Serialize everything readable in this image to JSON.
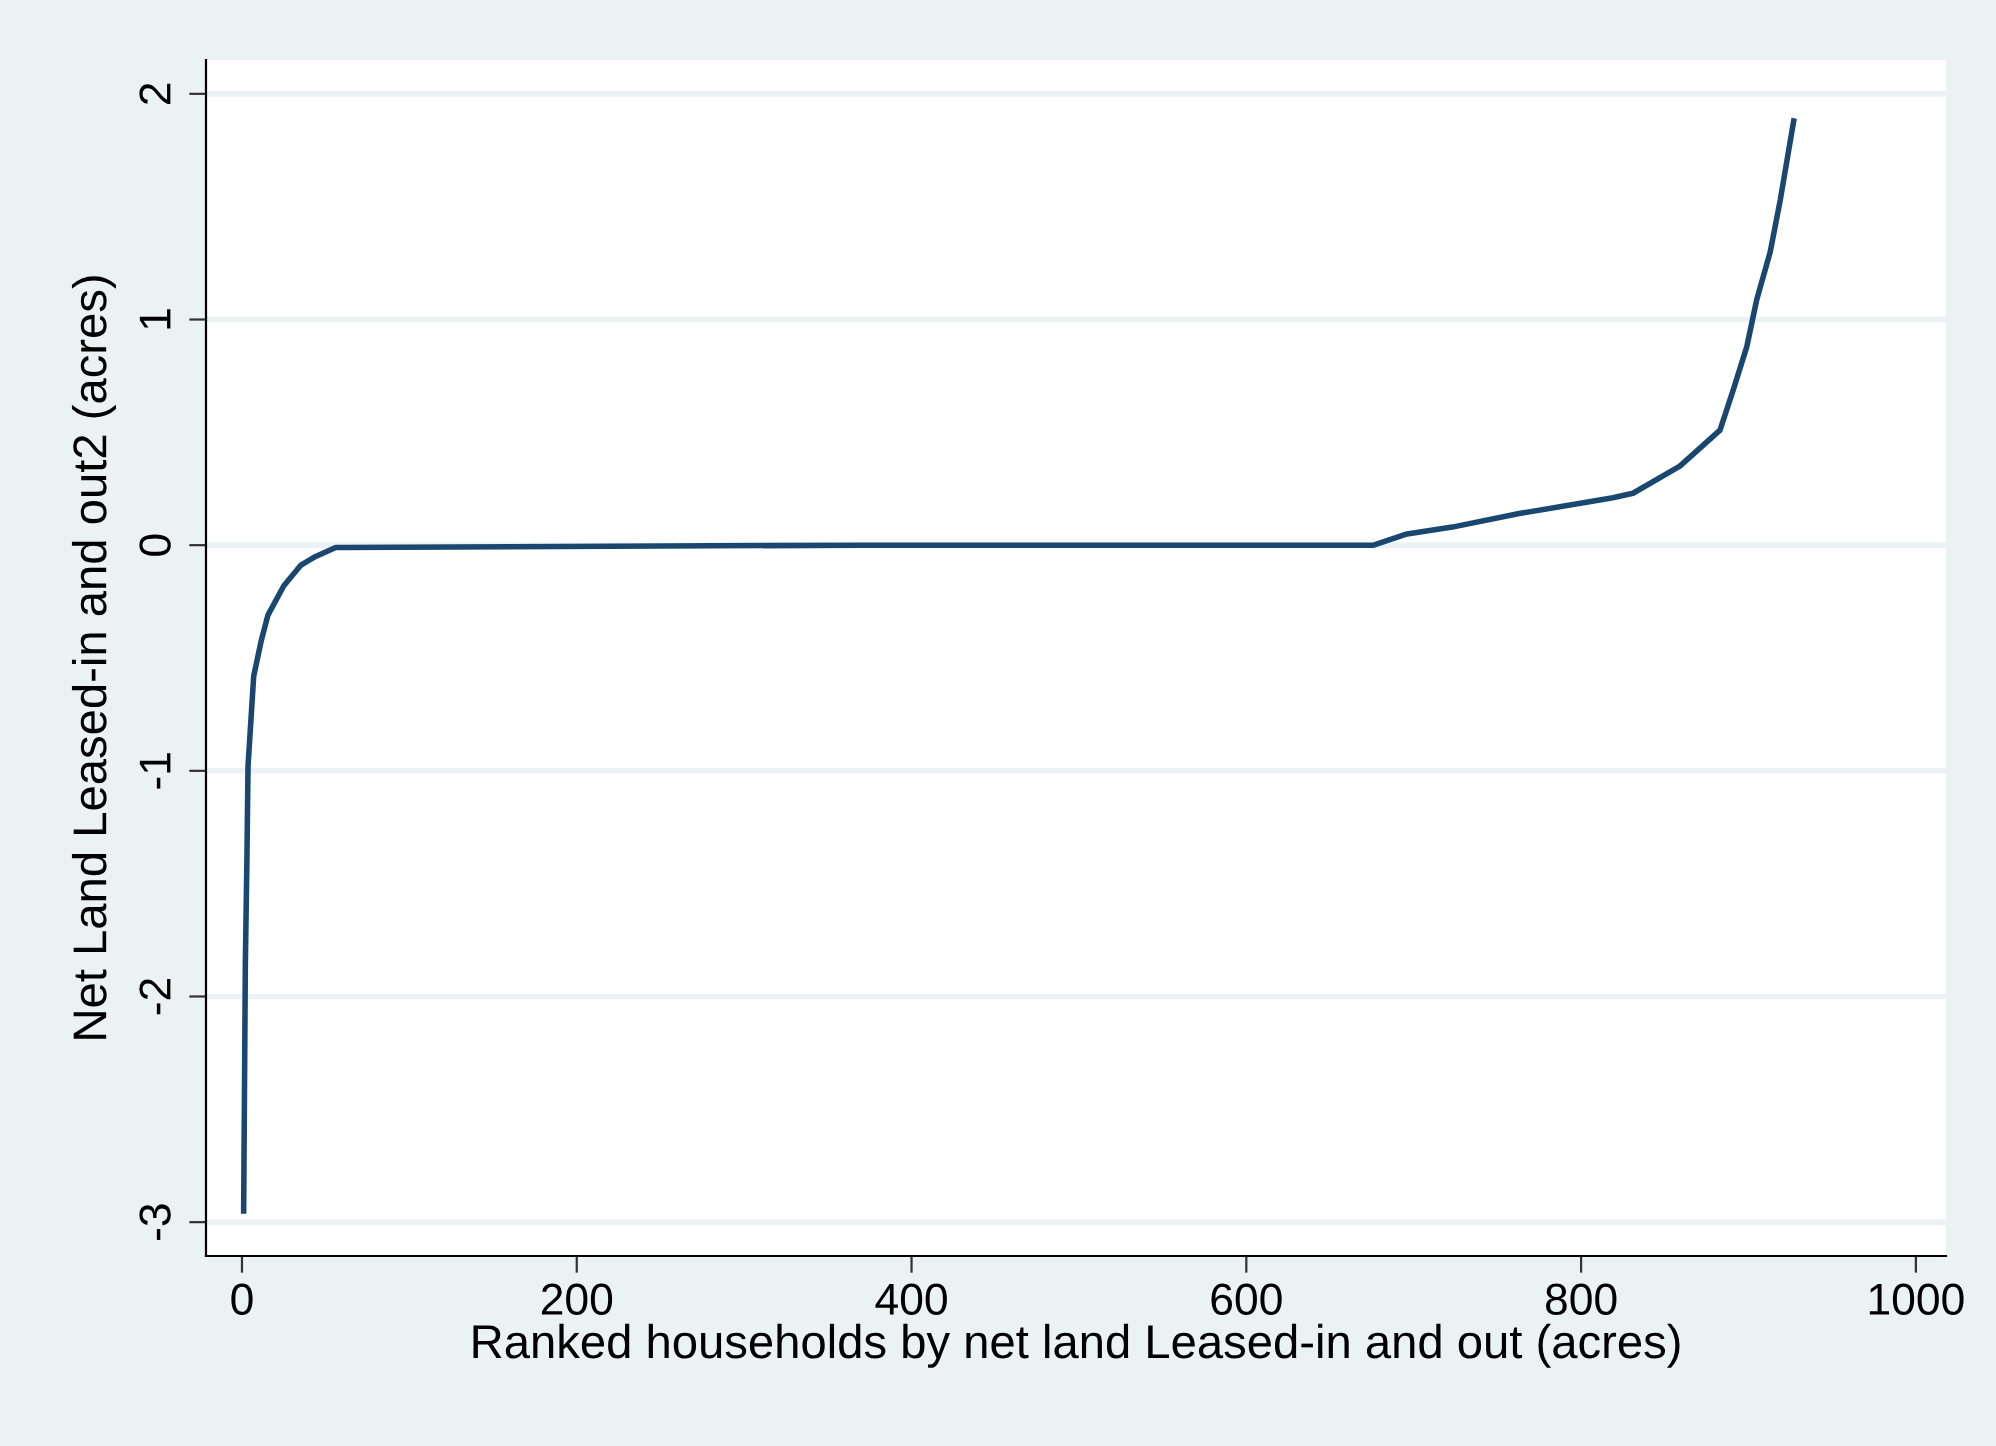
{
  "chart_data": {
    "type": "line",
    "xlabel": "Ranked households by net land Leased-in and out (acres)",
    "ylabel": "Net Land Leased-in and out2 (acres)",
    "series": [
      {
        "color": "#1a476f",
        "x": [
          1,
          2,
          3,
          3.6,
          7,
          11.6,
          15.5,
          25,
          35,
          44,
          56,
          60,
          370,
          676,
          696,
          723,
          763,
          819,
          831,
          859,
          883,
          891,
          899,
          905,
          913,
          919,
          927
        ],
        "values": [
          -2.95,
          -1.86,
          -1.36,
          -0.98,
          -0.58,
          -0.42,
          -0.31,
          -0.18,
          -0.09,
          -0.05,
          -0.01,
          -0.01,
          0,
          0,
          0.05,
          0.08,
          0.14,
          0.21,
          0.23,
          0.35,
          0.51,
          0.69,
          0.88,
          1.09,
          1.3,
          1.53,
          1.88
        ]
      }
    ],
    "xlim": [
      -21.5,
      1018
    ],
    "ylim": [
      -3.15,
      2.15
    ],
    "xticks": [
      0,
      200,
      400,
      600,
      800,
      1000
    ],
    "yticks": [
      -3,
      -2,
      -1,
      0,
      1,
      2
    ],
    "grid": "y",
    "legend": false,
    "marker": "none",
    "line_style": "solid"
  }
}
